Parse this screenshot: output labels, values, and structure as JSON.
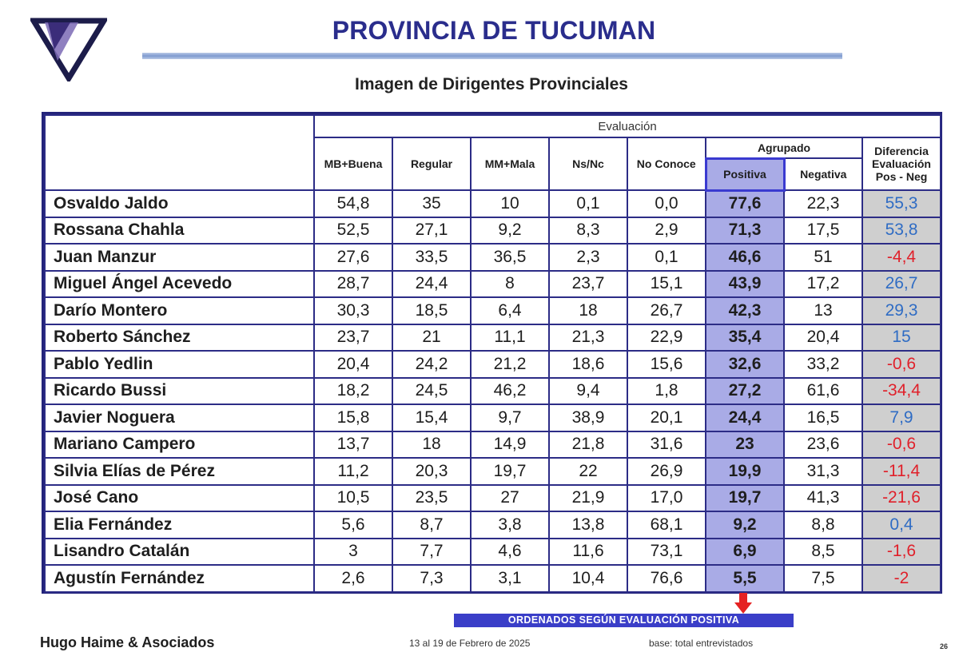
{
  "header": {
    "title": "PROVINCIA DE TUCUMAN",
    "subtitle": "Imagen de Dirigentes Provinciales"
  },
  "table": {
    "evaluation_label": "Evaluación",
    "grouped_label": "Agrupado",
    "columns": {
      "mb_buena": "MB+Buena",
      "regular": "Regular",
      "mm_mala": "MM+Mala",
      "ns_nc": "Ns/Nc",
      "no_conoce": "No Conoce",
      "positiva": "Positiva",
      "negativa": "Negativa",
      "diferencia_1": "Diferencia",
      "diferencia_2": "Evaluación",
      "diferencia_3": "Pos - Neg"
    },
    "rows": [
      {
        "name": "Osvaldo Jaldo",
        "mb": "54,8",
        "reg": "35",
        "mm": "10",
        "ns": "0,1",
        "nc": "0,0",
        "pos": "77,6",
        "neg": "22,3",
        "diff": "55,3"
      },
      {
        "name": "Rossana Chahla",
        "mb": "52,5",
        "reg": "27,1",
        "mm": "9,2",
        "ns": "8,3",
        "nc": "2,9",
        "pos": "71,3",
        "neg": "17,5",
        "diff": "53,8"
      },
      {
        "name": "Juan Manzur",
        "mb": "27,6",
        "reg": "33,5",
        "mm": "36,5",
        "ns": "2,3",
        "nc": "0,1",
        "pos": "46,6",
        "neg": "51",
        "diff": "-4,4"
      },
      {
        "name": "Miguel Ángel Acevedo",
        "mb": "28,7",
        "reg": "24,4",
        "mm": "8",
        "ns": "23,7",
        "nc": "15,1",
        "pos": "43,9",
        "neg": "17,2",
        "diff": "26,7"
      },
      {
        "name": "Darío Montero",
        "mb": "30,3",
        "reg": "18,5",
        "mm": "6,4",
        "ns": "18",
        "nc": "26,7",
        "pos": "42,3",
        "neg": "13",
        "diff": "29,3"
      },
      {
        "name": "Roberto Sánchez",
        "mb": "23,7",
        "reg": "21",
        "mm": "11,1",
        "ns": "21,3",
        "nc": "22,9",
        "pos": "35,4",
        "neg": "20,4",
        "diff": "15"
      },
      {
        "name": "Pablo Yedlin",
        "mb": "20,4",
        "reg": "24,2",
        "mm": "21,2",
        "ns": "18,6",
        "nc": "15,6",
        "pos": "32,6",
        "neg": "33,2",
        "diff": "-0,6"
      },
      {
        "name": "Ricardo Bussi",
        "mb": "18,2",
        "reg": "24,5",
        "mm": "46,2",
        "ns": "9,4",
        "nc": "1,8",
        "pos": "27,2",
        "neg": "61,6",
        "diff": "-34,4"
      },
      {
        "name": "Javier Noguera",
        "mb": "15,8",
        "reg": "15,4",
        "mm": "9,7",
        "ns": "38,9",
        "nc": "20,1",
        "pos": "24,4",
        "neg": "16,5",
        "diff": "7,9"
      },
      {
        "name": "Mariano Campero",
        "mb": "13,7",
        "reg": "18",
        "mm": "14,9",
        "ns": "21,8",
        "nc": "31,6",
        "pos": "23",
        "neg": "23,6",
        "diff": "-0,6"
      },
      {
        "name": "Silvia Elías de Pérez",
        "mb": "11,2",
        "reg": "20,3",
        "mm": "19,7",
        "ns": "22",
        "nc": "26,9",
        "pos": "19,9",
        "neg": "31,3",
        "diff": "-11,4"
      },
      {
        "name": "José Cano",
        "mb": "10,5",
        "reg": "23,5",
        "mm": "27",
        "ns": "21,9",
        "nc": "17,0",
        "pos": "19,7",
        "neg": "41,3",
        "diff": "-21,6"
      },
      {
        "name": "Elia Fernández",
        "mb": "5,6",
        "reg": "8,7",
        "mm": "3,8",
        "ns": "13,8",
        "nc": "68,1",
        "pos": "9,2",
        "neg": "8,8",
        "diff": "0,4"
      },
      {
        "name": "Lisandro Catalán",
        "mb": "3",
        "reg": "7,7",
        "mm": "4,6",
        "ns": "11,6",
        "nc": "73,1",
        "pos": "6,9",
        "neg": "8,5",
        "diff": "-1,6"
      },
      {
        "name": "Agustín Fernández",
        "mb": "2,6",
        "reg": "7,3",
        "mm": "3,1",
        "ns": "10,4",
        "nc": "76,6",
        "pos": "5,5",
        "neg": "7,5",
        "diff": "-2"
      }
    ],
    "colors": {
      "positive_diff": "#2f6cc4",
      "negative_diff": "#e0202a",
      "positiva_fill": "#a9abe6"
    }
  },
  "footer": {
    "sort_note": "ORDENADOS SEGÚN  EVALUACIÓN  POSITIVA",
    "author": "Hugo Haime & Asociados",
    "date": "13 al 19 de Febrero de 2025",
    "base": "base: total entrevistados",
    "page": "26"
  },
  "icons": {
    "logo": "triangle-logo-icon",
    "arrow": "down-arrow-icon"
  }
}
